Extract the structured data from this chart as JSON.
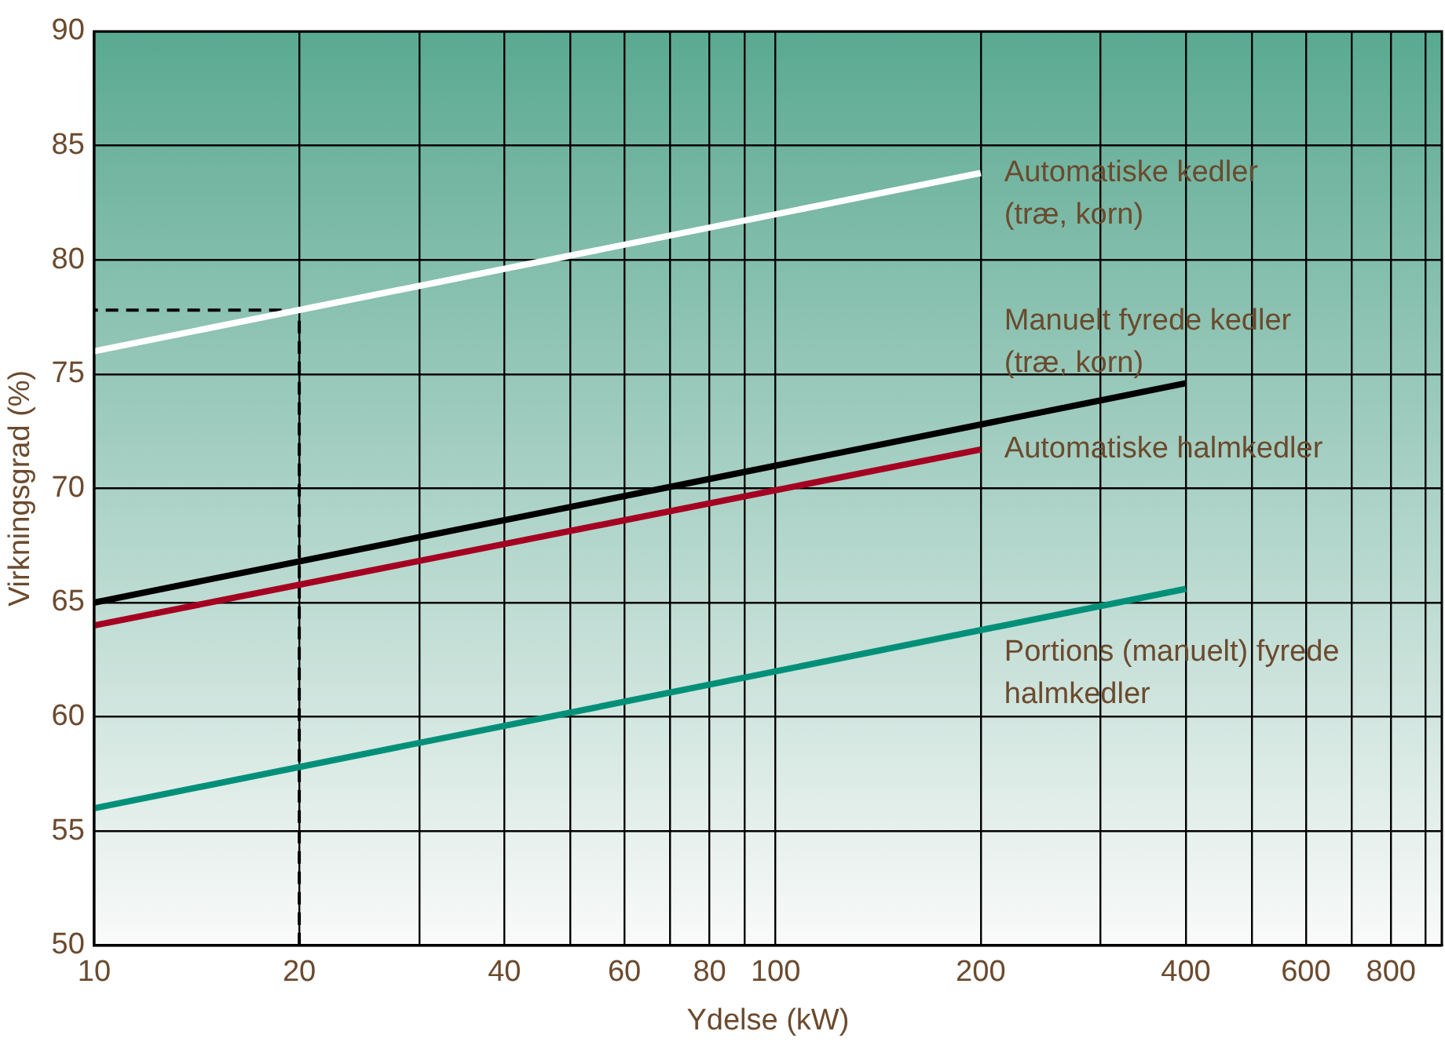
{
  "chart_data": {
    "type": "line",
    "xlabel": "Ydelse (kW)",
    "ylabel": "Virkningsgrad (%)",
    "log": "x",
    "xlim": [
      10,
      950
    ],
    "ylim": [
      50,
      90
    ],
    "xticks": [
      10,
      20,
      {
        "value": 30,
        "label": null
      },
      40,
      {
        "value": 50,
        "label": null
      },
      60,
      {
        "value": 70,
        "label": null
      },
      80,
      {
        "value": 90,
        "label": null
      },
      100,
      200,
      {
        "value": 300,
        "label": null
      },
      400,
      {
        "value": 500,
        "label": null
      },
      600,
      {
        "value": 700,
        "label": null
      },
      800,
      {
        "value": 900,
        "label": null
      }
    ],
    "yticks": [
      50,
      55,
      60,
      65,
      70,
      75,
      80,
      85,
      90
    ],
    "grid": true,
    "legend": false,
    "marker": "none",
    "series": [
      {
        "name": "Automatiske kedler\n(træ, korn)",
        "color": "#ffffff",
        "x": [
          10,
          200
        ],
        "values": [
          76.0,
          83.8
        ]
      },
      {
        "name": "Manuelt fyrede kedler\n(træ, korn)",
        "color": "#000000",
        "x": [
          10,
          400
        ],
        "values": [
          65.0,
          74.6
        ]
      },
      {
        "name": "Automatiske halmkedler",
        "color": "#a50021",
        "x": [
          10,
          200
        ],
        "values": [
          64.0,
          71.7
        ]
      },
      {
        "name": "Portions (manuelt) fyrede\nhalmkedler",
        "color": "#009079",
        "x": [
          10,
          400
        ],
        "values": [
          56.0,
          65.6
        ]
      },
      {
        "color": "#000000",
        "line_style": "dashed",
        "x": [
          20,
          20,
          10
        ],
        "values": [
          50,
          77.8,
          77.8
        ]
      }
    ]
  }
}
